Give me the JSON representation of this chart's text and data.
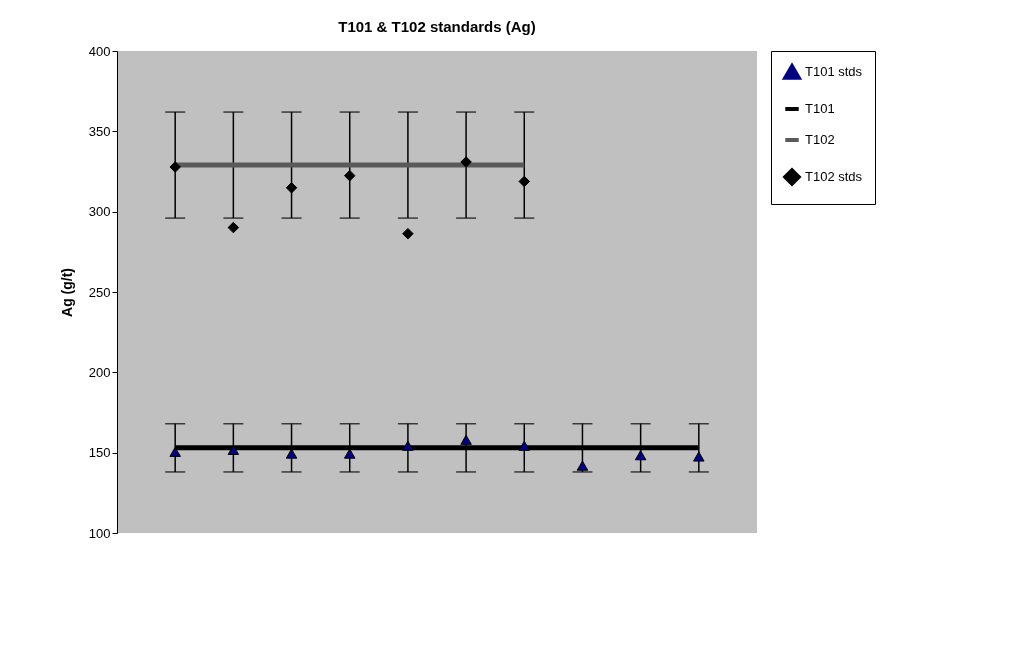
{
  "chart_data": {
    "type": "scatter",
    "title": "T101 & T102 standards (Ag)",
    "ylabel": "Ag (g/t)",
    "categories": [
      null,
      null,
      null,
      null,
      null,
      null,
      null,
      null,
      null,
      null
    ],
    "ylim": [
      100,
      400
    ],
    "yticks": [
      100,
      150,
      200,
      250,
      300,
      350,
      400
    ],
    "grid": false,
    "legend": "right",
    "series": [
      {
        "name": "T101 stds",
        "marker": "triangle",
        "color": "#000080",
        "values": [
          150.5,
          151.7,
          149.4,
          149.4,
          154.3,
          158,
          154.3,
          141.9,
          148.4,
          147.6
        ]
      },
      {
        "name": "T101",
        "type": "line",
        "color": "#000000",
        "line_style": "solid",
        "values": [
          153,
          153,
          153,
          153,
          153,
          153,
          153,
          153,
          153,
          153
        ],
        "errors": [
          [
            138,
            168
          ],
          [
            138,
            168
          ],
          [
            138,
            168
          ],
          [
            138,
            168
          ],
          [
            138,
            168
          ],
          [
            138,
            168
          ],
          [
            138,
            168
          ],
          [
            138,
            168
          ],
          [
            138,
            168
          ],
          [
            138,
            168
          ]
        ]
      },
      {
        "name": "T102",
        "type": "line",
        "color": "#5a5a5a",
        "line_style": "solid",
        "values": [
          329,
          329,
          329,
          329,
          329,
          329,
          329,
          null,
          null,
          null
        ],
        "errors": [
          [
            296,
            362
          ],
          [
            296,
            362
          ],
          [
            296,
            362
          ],
          [
            296,
            362
          ],
          [
            296,
            362
          ],
          [
            296,
            362
          ],
          [
            296,
            362
          ],
          null,
          null,
          null
        ]
      },
      {
        "name": "T102 stds",
        "marker": "diamond",
        "color": "#000000",
        "values": [
          327.8,
          290.1,
          314.9,
          322.4,
          286.3,
          330.9,
          318.8,
          null,
          null,
          null
        ]
      }
    ]
  }
}
